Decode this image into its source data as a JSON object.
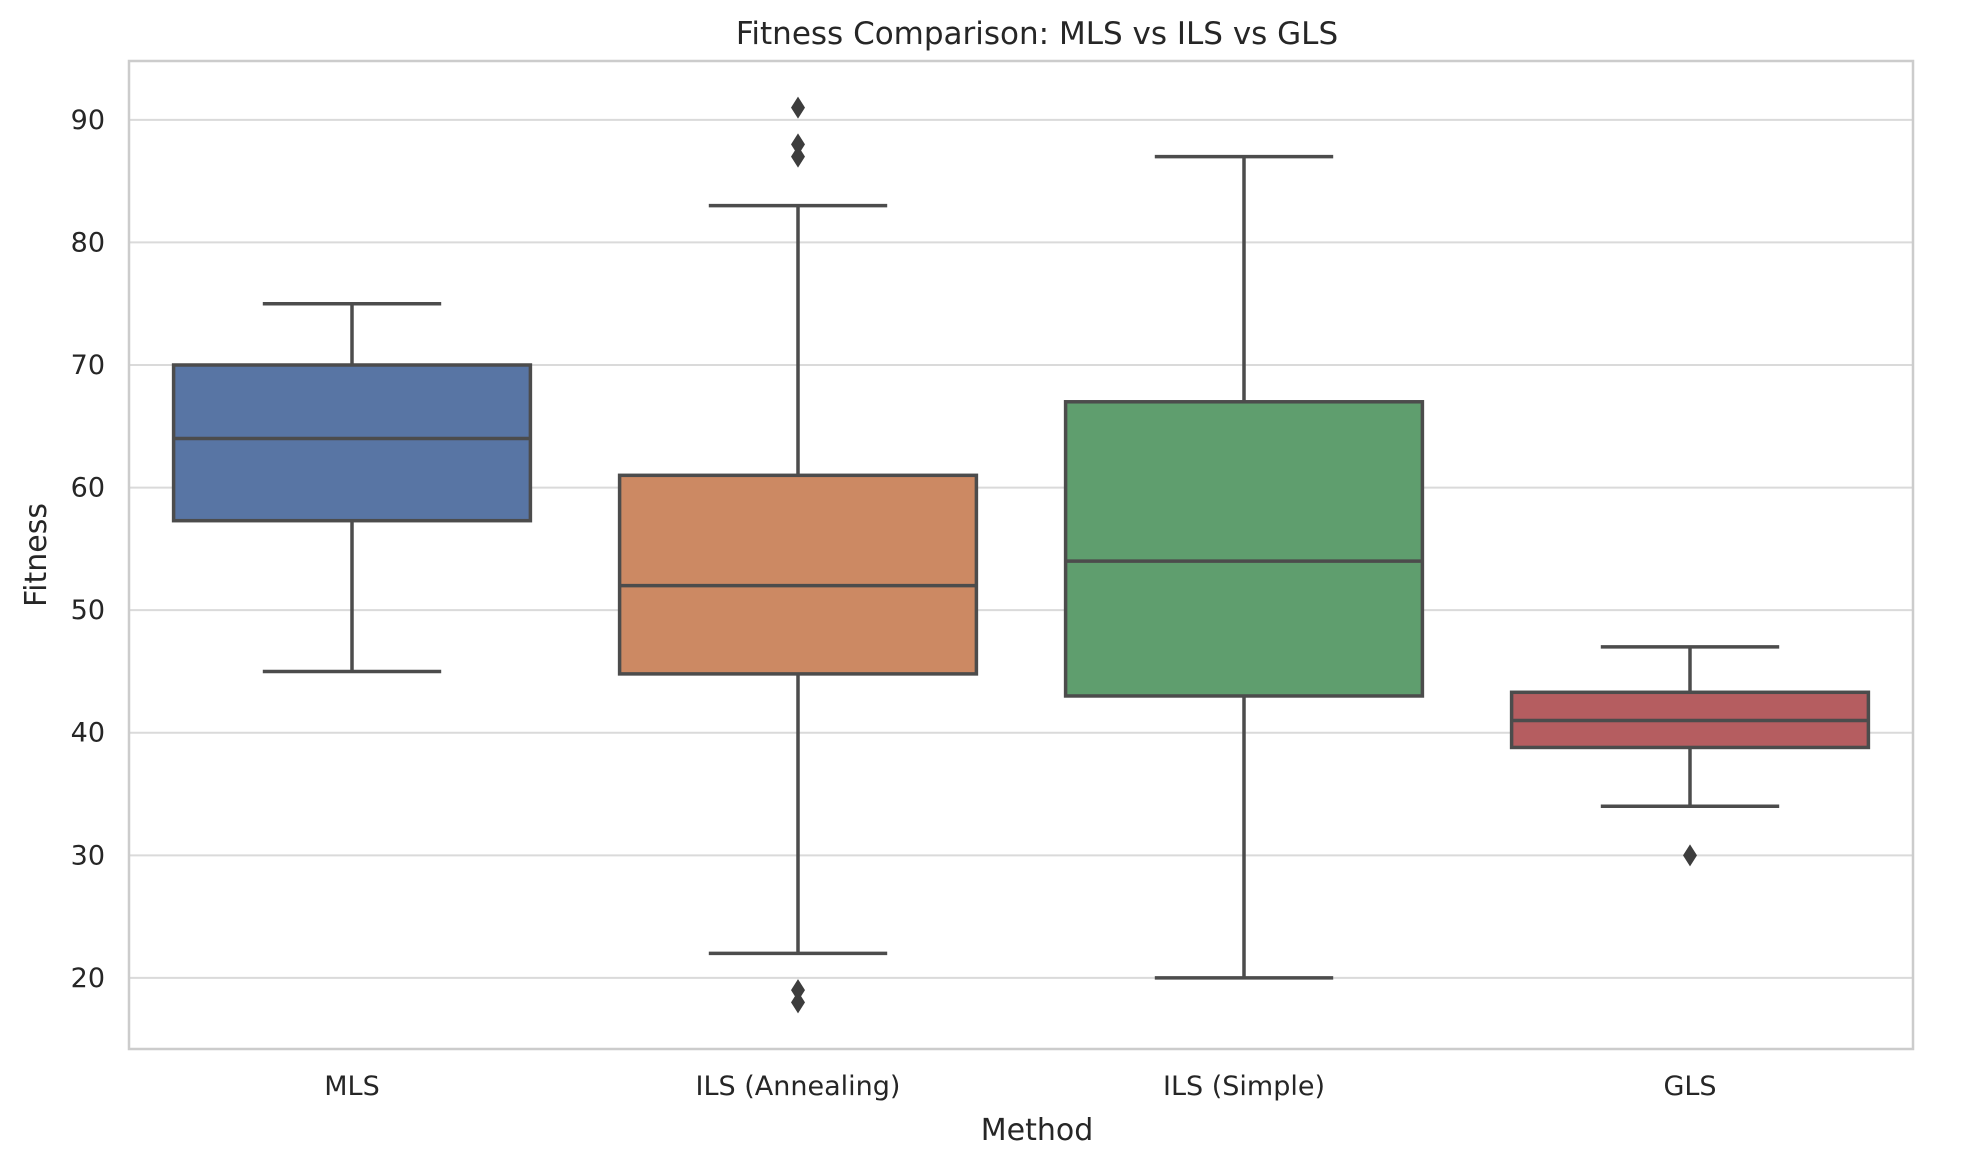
{
  "chart_data": {
    "type": "box",
    "title": "Fitness Comparison: MLS vs ILS vs GLS",
    "xlabel": "Method",
    "ylabel": "Fitness",
    "ylim": [
      14.2,
      94.8
    ],
    "yticks": [
      20,
      30,
      40,
      50,
      60,
      70,
      80,
      90
    ],
    "grid": "horizontal",
    "categories": [
      "MLS",
      "ILS (Annealing)",
      "ILS (Simple)",
      "GLS"
    ],
    "boxes": [
      {
        "category": "MLS",
        "whisker_low": 45,
        "q1": 57.3,
        "median": 64,
        "q3": 70,
        "whisker_high": 75,
        "outliers": [],
        "color": "#5875a4"
      },
      {
        "category": "ILS (Annealing)",
        "whisker_low": 22,
        "q1": 44.8,
        "median": 52,
        "q3": 61,
        "whisker_high": 83,
        "outliers": [
          91,
          88,
          87,
          19,
          18
        ],
        "color": "#cc8963"
      },
      {
        "category": "ILS (Simple)",
        "whisker_low": 20,
        "q1": 43,
        "median": 54,
        "q3": 67,
        "whisker_high": 87,
        "outliers": [],
        "color": "#5f9e6e"
      },
      {
        "category": "GLS",
        "whisker_low": 34,
        "q1": 38.8,
        "median": 41,
        "q3": 43.3,
        "whisker_high": 47,
        "outliers": [
          30
        ],
        "color": "#b55d60"
      }
    ],
    "line_color": "#4c4c4c",
    "grid_color": "#dadada",
    "frame_color": "#cccccc"
  }
}
